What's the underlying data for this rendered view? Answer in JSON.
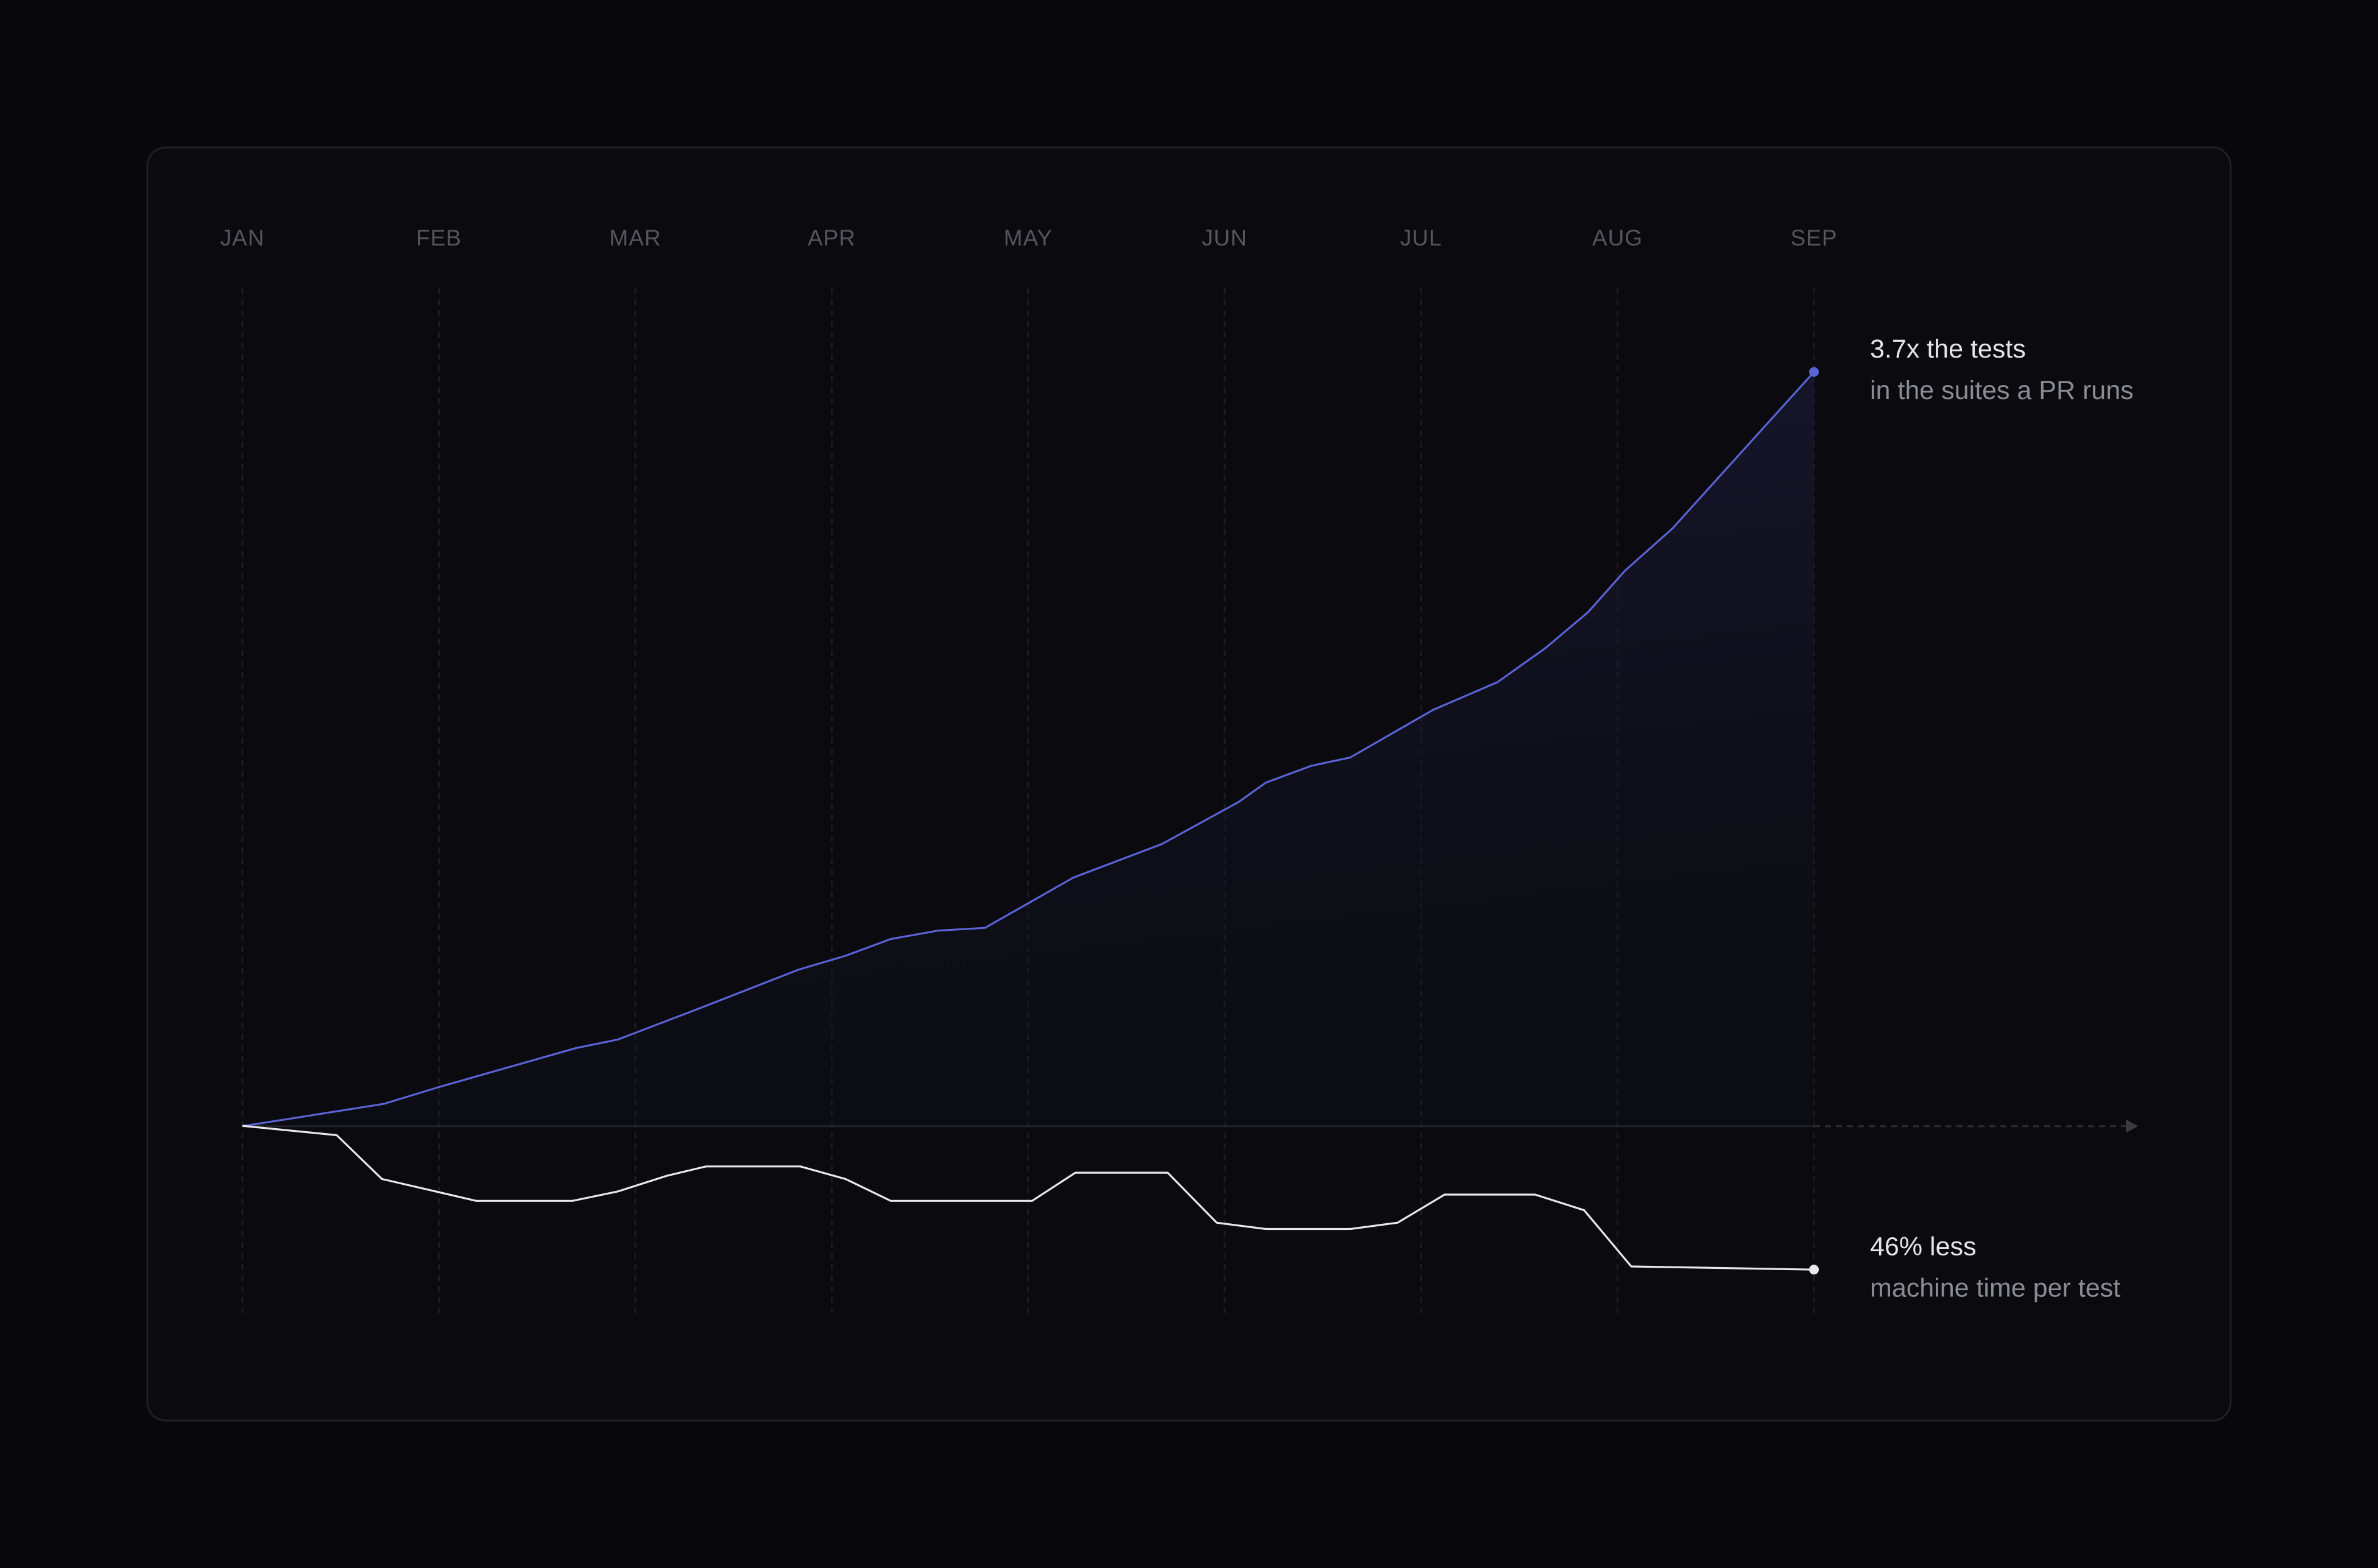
{
  "chart_data": {
    "type": "line",
    "xlim": [
      0,
      8
    ],
    "xticks": [
      {
        "value": 0,
        "label": "JAN"
      },
      {
        "value": 1,
        "label": "FEB"
      },
      {
        "value": 2,
        "label": "MAR"
      },
      {
        "value": 3,
        "label": "APR"
      },
      {
        "value": 4,
        "label": "MAY"
      },
      {
        "value": 5,
        "label": "JUN"
      },
      {
        "value": 6,
        "label": "JUL"
      },
      {
        "value": 7,
        "label": "AUG"
      },
      {
        "value": 8,
        "label": "SEP"
      }
    ],
    "ylim": [
      0.33,
      4
    ],
    "y2lim": [
      0.4,
      3.68
    ],
    "grid": true,
    "series": [
      {
        "color": "#5b63d6",
        "x": [
          0,
          0.72,
          1.0,
          1.7,
          1.91,
          2.32,
          2.83,
          3.07,
          3.3,
          3.54,
          3.78,
          4.23,
          4.68,
          5.07,
          5.21,
          5.44,
          5.64,
          6.06,
          6.39,
          6.63,
          6.85,
          7.04,
          7.28,
          8.0
        ],
        "values": [
          1.0,
          1.08,
          1.14,
          1.28,
          1.31,
          1.42,
          1.56,
          1.61,
          1.67,
          1.7,
          1.71,
          1.89,
          2.01,
          2.16,
          2.23,
          2.29,
          2.32,
          2.49,
          2.59,
          2.71,
          2.84,
          2.99,
          3.14,
          3.7
        ]
      },
      {
        "color": "#e8e8ec",
        "axis": "y2",
        "x": [
          0,
          0.48,
          0.71,
          1.19,
          1.68,
          1.91,
          2.16,
          2.36,
          2.84,
          3.07,
          3.3,
          4.02,
          4.24,
          4.71,
          4.96,
          5.21,
          5.64,
          5.88,
          6.12,
          6.58,
          6.83,
          7.07,
          8.0
        ],
        "values": [
          1.0,
          0.97,
          0.83,
          0.76,
          0.76,
          0.79,
          0.84,
          0.87,
          0.87,
          0.83,
          0.76,
          0.76,
          0.85,
          0.85,
          0.69,
          0.67,
          0.67,
          0.69,
          0.78,
          0.78,
          0.73,
          0.55,
          0.54
        ]
      }
    ],
    "annotations": [
      {
        "lines": [
          "3.7x the tests",
          "in the suites a PR runs"
        ]
      },
      {
        "lines": [
          "46% less",
          "machine time per test"
        ]
      }
    ]
  }
}
